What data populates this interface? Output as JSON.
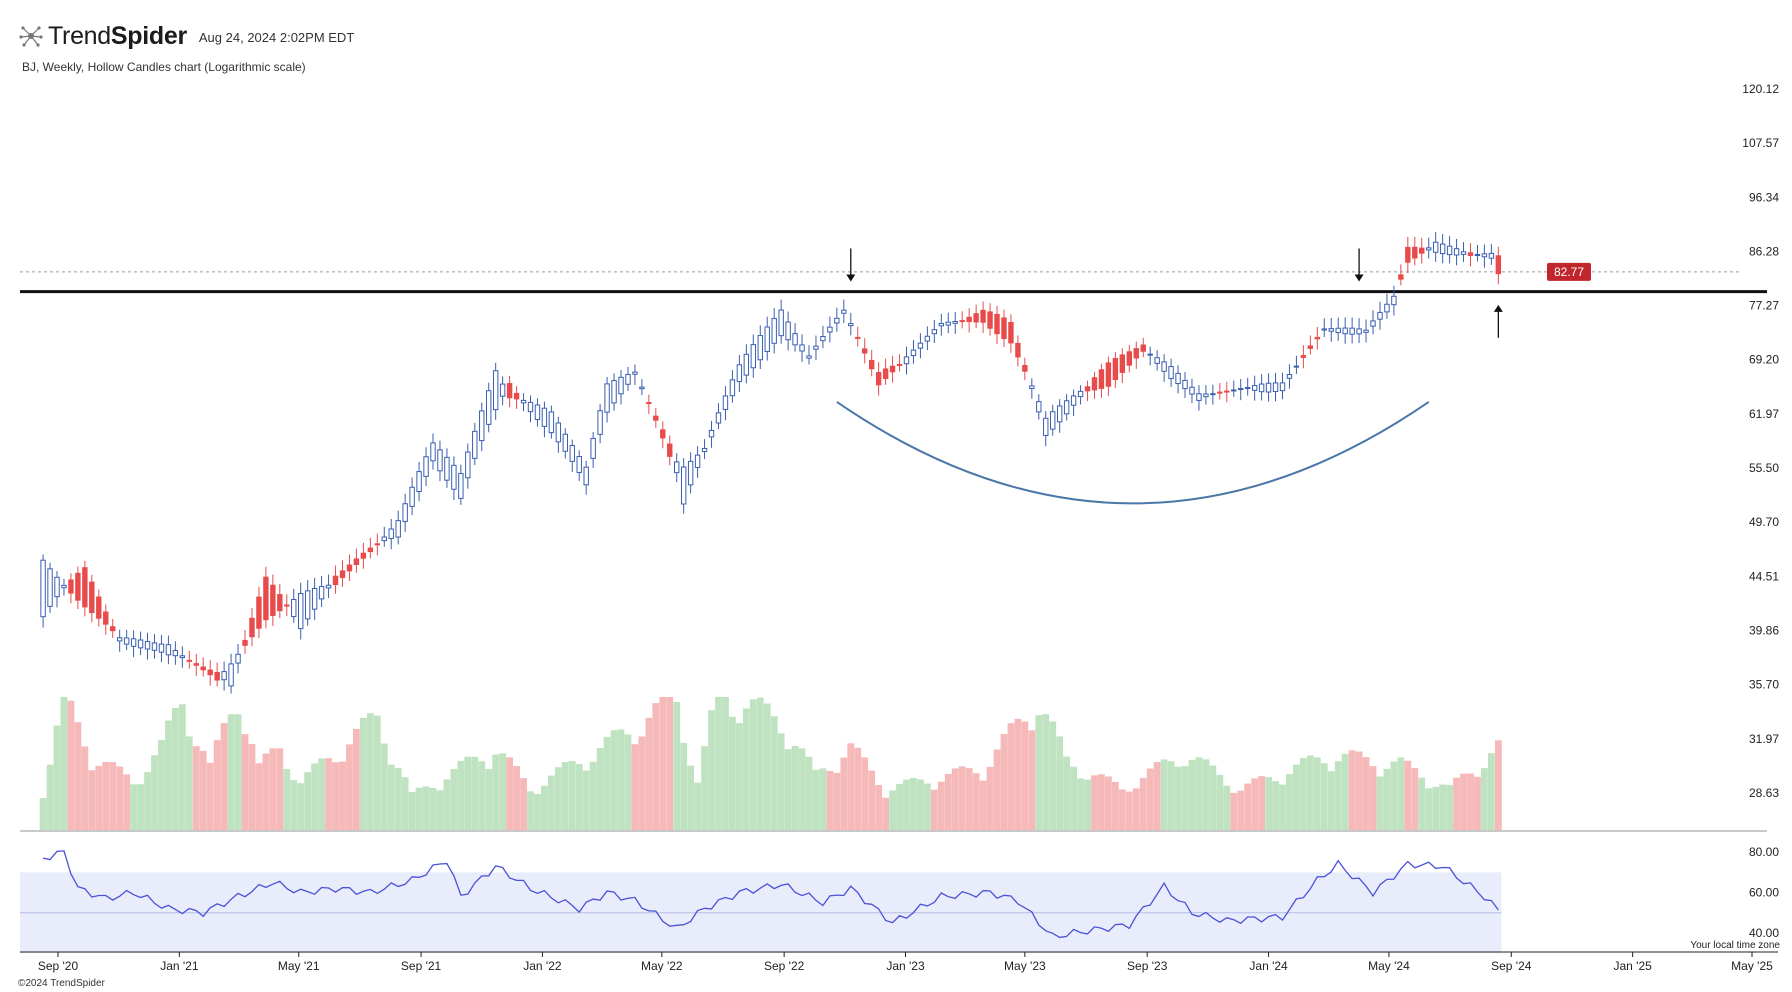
{
  "header": {
    "brand_light": "Trend",
    "brand_bold": "Spider",
    "timestamp": "Aug 24, 2024 2:02PM EDT",
    "subtitle": "BJ, Weekly, Hollow Candles chart (Logarithmic scale)",
    "logo_icon": "spider-logo-icon"
  },
  "footer": {
    "copyright": "©2024 TrendSpider",
    "timezone_note": "Your local time zone"
  },
  "colors": {
    "up": "#3a5fb0",
    "down": "#e84b4b",
    "vol_up": "#bfe3c0",
    "vol_down": "#f6b9b9",
    "rsi_line": "#4a52d8",
    "rsi_band": "#e9ecfb",
    "arc": "#4a77a8",
    "price_tag_bg": "#c0262b",
    "resistance": "#111111"
  },
  "chart_data": {
    "type": "candlestick",
    "symbol": "BJ",
    "interval": "Weekly",
    "scale": "log",
    "price_axis_ticks": [
      "120.12",
      "107.57",
      "96.34",
      "86.28",
      "77.27",
      "69.20",
      "61.97",
      "55.50",
      "49.70",
      "44.51",
      "39.86",
      "35.70",
      "31.97",
      "28.63"
    ],
    "time_axis_ticks": [
      "Sep '20",
      "Jan '21",
      "May '21",
      "Sep '21",
      "Jan '22",
      "May '22",
      "Sep '22",
      "Jan '23",
      "May '23",
      "Sep '23",
      "Jan '24",
      "May '24",
      "Sep '24",
      "Jan '25",
      "May '25"
    ],
    "last_price": "82.77",
    "resistance_level": 79.5,
    "arrows": [
      {
        "date": "2022-11-07",
        "price": 81,
        "direction": "down"
      },
      {
        "date": "2024-04-01",
        "price": 81,
        "direction": "down"
      },
      {
        "date": "2024-08-19",
        "price": 78.5,
        "direction": "up"
      }
    ],
    "price_anchors": [
      [
        "2020-08-17",
        41,
        46
      ],
      [
        "2020-09-28",
        45,
        42
      ],
      [
        "2020-11-02",
        39.5,
        39
      ],
      [
        "2020-12-21",
        37.5,
        39
      ],
      [
        "2021-02-08",
        37,
        35.8
      ],
      [
        "2021-02-22",
        36,
        37
      ],
      [
        "2021-03-29",
        44,
        41
      ],
      [
        "2021-05-03",
        40,
        43
      ],
      [
        "2021-06-07",
        45,
        43.5
      ],
      [
        "2021-08-09",
        48,
        50
      ],
      [
        "2021-09-13",
        57,
        58
      ],
      [
        "2021-10-11",
        52,
        55
      ],
      [
        "2021-11-15",
        62,
        68
      ],
      [
        "2021-11-29",
        66,
        64
      ],
      [
        "2022-01-10",
        60,
        62
      ],
      [
        "2022-02-14",
        53,
        56
      ],
      [
        "2022-03-07",
        62,
        66
      ],
      [
        "2022-04-04",
        68,
        67
      ],
      [
        "2022-05-09",
        58,
        57
      ],
      [
        "2022-05-23",
        51,
        56
      ],
      [
        "2022-06-13",
        57,
        58
      ],
      [
        "2022-07-18",
        67,
        68
      ],
      [
        "2022-08-29",
        72,
        77
      ],
      [
        "2022-09-26",
        69,
        70
      ],
      [
        "2022-10-31",
        77,
        76
      ],
      [
        "2022-12-05",
        67,
        66
      ],
      [
        "2023-01-02",
        68,
        70
      ],
      [
        "2023-02-06",
        75,
        74
      ],
      [
        "2023-03-20",
        76,
        75
      ],
      [
        "2023-04-17",
        74,
        72
      ],
      [
        "2023-05-22",
        60,
        61
      ],
      [
        "2023-06-26",
        64,
        65
      ],
      [
        "2023-07-24",
        68,
        66
      ],
      [
        "2023-08-28",
        72,
        70
      ],
      [
        "2023-09-25",
        67,
        68
      ],
      [
        "2023-10-23",
        63,
        65
      ],
      [
        "2023-12-11",
        66,
        65
      ],
      [
        "2024-01-15",
        65,
        66
      ],
      [
        "2024-02-26",
        73,
        74
      ],
      [
        "2024-04-08",
        74,
        73
      ],
      [
        "2024-05-06",
        77,
        79
      ],
      [
        "2024-05-20",
        86,
        85
      ],
      [
        "2024-06-17",
        86,
        88
      ],
      [
        "2024-07-22",
        87,
        85
      ],
      [
        "2024-08-12",
        85,
        86
      ],
      [
        "2024-08-19",
        85,
        82.77
      ]
    ],
    "volume_anchors": [
      [
        "2020-08-17",
        0.3
      ],
      [
        "2020-09-07",
        0.95
      ],
      [
        "2020-10-05",
        0.55
      ],
      [
        "2020-11-16",
        0.35
      ],
      [
        "2020-12-14",
        0.6
      ],
      [
        "2021-01-04",
        0.95
      ],
      [
        "2021-02-01",
        0.45
      ],
      [
        "2021-03-01",
        1.0
      ],
      [
        "2021-03-22",
        0.45
      ],
      [
        "2021-04-12",
        0.6
      ],
      [
        "2021-05-03",
        0.35
      ],
      [
        "2021-07-19",
        0.82
      ],
      [
        "2021-08-23",
        0.25
      ],
      [
        "2021-11-15",
        0.6
      ],
      [
        "2021-12-20",
        0.3
      ],
      [
        "2022-03-07",
        0.62
      ],
      [
        "2022-05-16",
        0.95
      ],
      [
        "2022-06-06",
        0.35
      ],
      [
        "2022-06-27",
        1.0
      ],
      [
        "2022-08-29",
        0.8
      ],
      [
        "2022-10-03",
        0.4
      ],
      [
        "2022-11-07",
        0.6
      ],
      [
        "2022-12-12",
        0.3
      ],
      [
        "2023-03-20",
        0.45
      ],
      [
        "2023-05-15",
        0.95
      ],
      [
        "2023-06-12",
        0.5
      ],
      [
        "2023-08-07",
        0.3
      ],
      [
        "2023-10-09",
        0.56
      ],
      [
        "2023-12-04",
        0.3
      ],
      [
        "2024-03-04",
        0.55
      ],
      [
        "2024-04-15",
        0.5
      ],
      [
        "2024-05-13",
        0.48
      ],
      [
        "2024-07-01",
        0.3
      ],
      [
        "2024-08-19",
        0.6
      ]
    ],
    "rsi_levels": [
      "80.00",
      "60.00",
      "40.00"
    ],
    "rsi_band": [
      70,
      30
    ],
    "rsi_anchors": [
      [
        "2020-08-17",
        77
      ],
      [
        "2020-09-07",
        80
      ],
      [
        "2020-09-21",
        62
      ],
      [
        "2020-10-19",
        57
      ],
      [
        "2020-11-16",
        60
      ],
      [
        "2020-12-21",
        52
      ],
      [
        "2021-01-25",
        50
      ],
      [
        "2021-03-01",
        58
      ],
      [
        "2021-04-05",
        65
      ],
      [
        "2021-05-03",
        60
      ],
      [
        "2021-06-07",
        62
      ],
      [
        "2021-07-12",
        60
      ],
      [
        "2021-08-23",
        66
      ],
      [
        "2021-09-27",
        76
      ],
      [
        "2021-10-11",
        58
      ],
      [
        "2021-11-15",
        73
      ],
      [
        "2021-12-20",
        62
      ],
      [
        "2022-02-07",
        52
      ],
      [
        "2022-03-07",
        60
      ],
      [
        "2022-04-04",
        56
      ],
      [
        "2022-05-16",
        42
      ],
      [
        "2022-06-13",
        52
      ],
      [
        "2022-07-18",
        60
      ],
      [
        "2022-08-29",
        64
      ],
      [
        "2022-10-10",
        55
      ],
      [
        "2022-11-07",
        62
      ],
      [
        "2022-12-19",
        45
      ],
      [
        "2023-02-06",
        58
      ],
      [
        "2023-03-27",
        60
      ],
      [
        "2023-04-24",
        56
      ],
      [
        "2023-05-29",
        38
      ],
      [
        "2023-06-19",
        40
      ],
      [
        "2023-08-14",
        44
      ],
      [
        "2023-09-18",
        63
      ],
      [
        "2023-10-16",
        50
      ],
      [
        "2023-11-20",
        46
      ],
      [
        "2024-01-15",
        48
      ],
      [
        "2024-02-19",
        66
      ],
      [
        "2024-03-11",
        74
      ],
      [
        "2024-04-15",
        60
      ],
      [
        "2024-05-20",
        74
      ],
      [
        "2024-06-24",
        73
      ],
      [
        "2024-08-05",
        58
      ],
      [
        "2024-08-19",
        51
      ]
    ]
  }
}
